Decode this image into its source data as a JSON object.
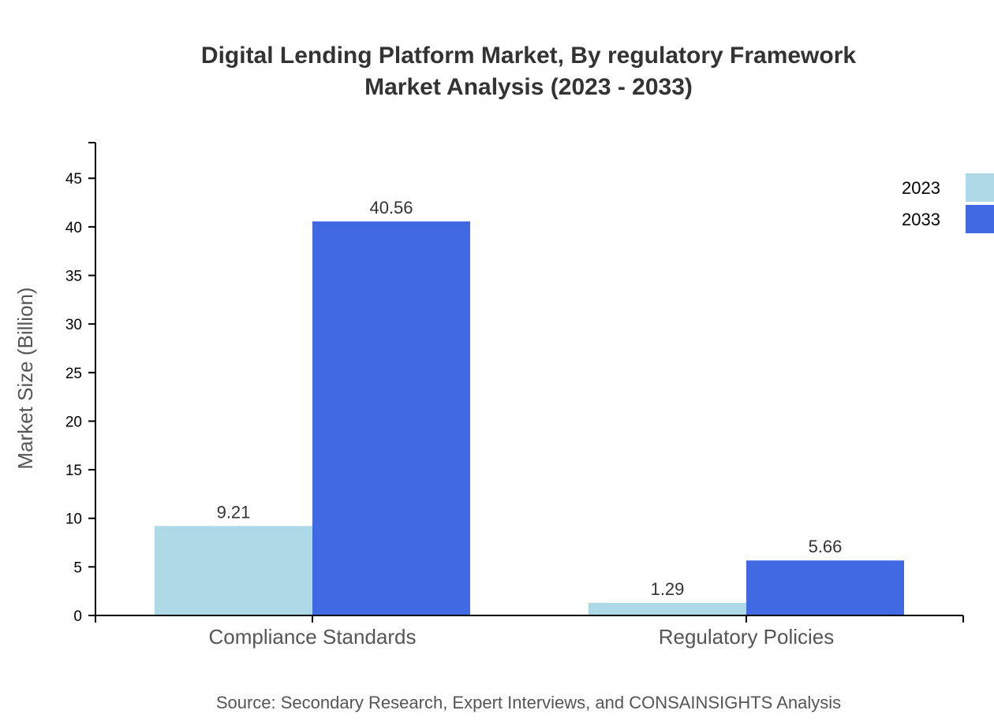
{
  "chart_data": {
    "type": "bar",
    "title": [
      "Digital Lending Platform Market, By regulatory Framework",
      "Market Analysis (2023 - 2033)"
    ],
    "xlabel": "",
    "ylabel": "Market Size (Billion)",
    "categories": [
      "Compliance Standards",
      "Regulatory Policies"
    ],
    "series": [
      {
        "name": "2023",
        "values": [
          9.21,
          1.29
        ],
        "color": "#add8e6"
      },
      {
        "name": "2033",
        "values": [
          40.56,
          5.66
        ],
        "color": "#4169e1"
      }
    ],
    "data_labels": [
      [
        "9.21",
        "1.29"
      ],
      [
        "40.56",
        "5.66"
      ]
    ],
    "ylim": [
      0,
      48.67
    ],
    "yticks": [
      0,
      5,
      10,
      15,
      20,
      25,
      30,
      35,
      40,
      45
    ],
    "grid": false,
    "legend_position": "top-right",
    "source": "Source: Secondary Research, Expert Interviews, and CONSAINSIGHTS Analysis"
  }
}
